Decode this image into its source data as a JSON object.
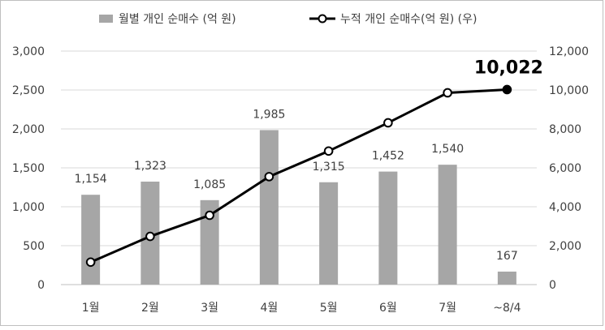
{
  "chart_data": {
    "type": "bar+line",
    "categories": [
      "1월",
      "2월",
      "3월",
      "4월",
      "5월",
      "6월",
      "7월",
      "~8/4"
    ],
    "series": [
      {
        "name": "월별 개인 순매수 (억 원)",
        "type": "bar",
        "axis": "left",
        "values": [
          1154,
          1323,
          1085,
          1985,
          1315,
          1452,
          1540,
          167
        ],
        "data_labels": [
          "1,154",
          "1,323",
          "1,085",
          "1,985",
          "1,315",
          "1,452",
          "1,540",
          "167"
        ],
        "color": "#a6a6a6"
      },
      {
        "name": "누적 개인 순매수(억 원) (우)",
        "type": "line",
        "axis": "right",
        "values": [
          1154,
          2477,
          3562,
          5547,
          6862,
          8314,
          9855,
          10022
        ],
        "data_labels": [
          "",
          "",
          "",
          "",
          "",
          "",
          "",
          "10,022"
        ],
        "color": "#000000"
      }
    ],
    "y_left": {
      "ylim": [
        0,
        3000
      ],
      "ticks": [
        "0",
        "500",
        "1,000",
        "1,500",
        "2,000",
        "2,500",
        "3,000"
      ],
      "tick_values": [
        0,
        500,
        1000,
        1500,
        2000,
        2500,
        3000
      ]
    },
    "y_right": {
      "ylim": [
        0,
        12000
      ],
      "ticks": [
        "0",
        "2,000",
        "4,000",
        "6,000",
        "8,000",
        "10,000",
        "12,000"
      ],
      "tick_values": [
        0,
        2000,
        4000,
        6000,
        8000,
        10000,
        12000
      ]
    },
    "grid": true,
    "legend_position": "top"
  }
}
